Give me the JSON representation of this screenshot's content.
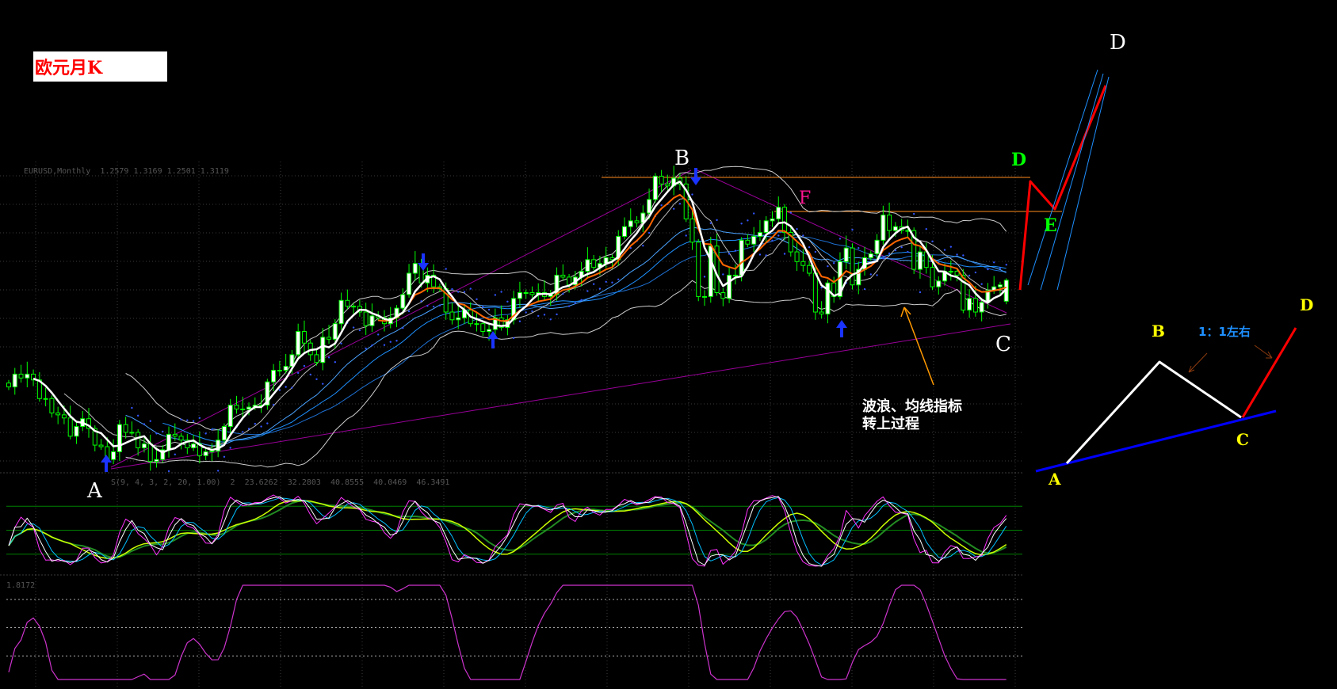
{
  "title": "欧元月K",
  "main_panel": {
    "header": "EURUSD,Monthly  1.2579 1.3169 1.2501 1.3119"
  },
  "stoch_panel": {
    "header": "S(9, 4, 3, 2, 20, 1.00)  2  23.6262  32.2803  40.8555  40.0469  46.3491"
  },
  "lower_panel": {
    "header": "1.8172"
  },
  "wave_labels": {
    "A": "A",
    "B": "B",
    "C": "C",
    "D_top": "D",
    "D_green": "D",
    "E": "E",
    "F": "F"
  },
  "note": {
    "line1": "波浪、均线指标",
    "line2": "转上过程"
  },
  "diagram": {
    "A": "A",
    "B": "B",
    "C": "C",
    "D": "D",
    "ratio": "1：1左右"
  },
  "colors": {
    "background": "#000000",
    "candle": "#00ff00",
    "ma_fast": "#ffffff",
    "ma_orange": "#ff6600",
    "ma_blue": "#1e90ff",
    "trendline": "#990099",
    "resistance": "#ff8c1a",
    "projection": "#ff0000",
    "stoch_level": "#008000",
    "lower_line": "#cc33cc",
    "diagram_label": "#ffff00",
    "ratio_text": "#1e90ff"
  },
  "chart_data": {
    "type": "candlestick",
    "title": "欧元月K",
    "last_bar": {
      "open": 1.2579,
      "high": 1.3169,
      "low": 1.2501,
      "close": 1.3119
    },
    "close": [
      1.037,
      1.07,
      1.06,
      1.07,
      1.055,
      1.007,
      1.007,
      0.97,
      0.965,
      0.957,
      0.91,
      0.935,
      0.955,
      0.93,
      0.887,
      0.883,
      0.85,
      0.87,
      0.94,
      0.92,
      0.92,
      0.88,
      0.89,
      0.845,
      0.85,
      0.875,
      0.915,
      0.91,
      0.9,
      0.88,
      0.89,
      0.86,
      0.87,
      0.872,
      0.9,
      0.935,
      0.99,
      0.98,
      0.98,
      0.985,
      0.99,
      0.99,
      1.05,
      1.08,
      1.08,
      1.09,
      1.12,
      1.18,
      1.15,
      1.12,
      1.1,
      1.165,
      1.16,
      1.2,
      1.26,
      1.245,
      1.245,
      1.23,
      1.195,
      1.22,
      1.215,
      1.2,
      1.215,
      1.24,
      1.275,
      1.33,
      1.355,
      1.305,
      1.325,
      1.295,
      1.29,
      1.23,
      1.21,
      1.215,
      1.235,
      1.2,
      1.2,
      1.18,
      1.185,
      1.215,
      1.19,
      1.21,
      1.265,
      1.28,
      1.28,
      1.275,
      1.28,
      1.27,
      1.275,
      1.325,
      1.32,
      1.3,
      1.32,
      1.335,
      1.365,
      1.345,
      1.355,
      1.37,
      1.365,
      1.425,
      1.45,
      1.465,
      1.46,
      1.485,
      1.52,
      1.58,
      1.56,
      1.555,
      1.575,
      1.56,
      1.47,
      1.41,
      1.27,
      1.27,
      1.4,
      1.28,
      1.265,
      1.325,
      1.325,
      1.415,
      1.405,
      1.425,
      1.435,
      1.465,
      1.47,
      1.5,
      1.435,
      1.385,
      1.36,
      1.35,
      1.33,
      1.23,
      1.225,
      1.305,
      1.27,
      1.36,
      1.395,
      1.3,
      1.34,
      1.37,
      1.38,
      1.415,
      1.48,
      1.44,
      1.45,
      1.44,
      1.44,
      1.34,
      1.385,
      1.345,
      1.295,
      1.31,
      1.335,
      1.335,
      1.325,
      1.235,
      1.265,
      1.23,
      1.255,
      1.285,
      1.295,
      1.3,
      1.3119
    ],
    "stochastic_levels": [
      20,
      50,
      80
    ],
    "grid": true
  }
}
